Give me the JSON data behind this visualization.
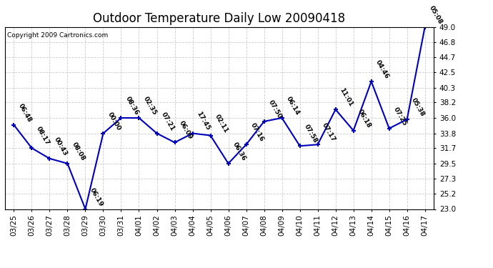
{
  "title": "Outdoor Temperature Daily Low 20090418",
  "copyright": "Copyright 2009 Cartronics.com",
  "x_labels": [
    "03/25",
    "03/26",
    "03/27",
    "03/28",
    "03/29",
    "03/30",
    "03/31",
    "04/01",
    "04/02",
    "04/03",
    "04/04",
    "04/05",
    "04/06",
    "04/07",
    "04/08",
    "04/09",
    "04/10",
    "04/11",
    "04/12",
    "04/13",
    "04/14",
    "04/15",
    "04/16",
    "04/17"
  ],
  "y_values": [
    35.0,
    31.7,
    30.2,
    29.5,
    23.0,
    33.8,
    36.0,
    36.0,
    33.8,
    32.5,
    33.8,
    33.5,
    29.5,
    32.2,
    35.5,
    36.0,
    32.0,
    32.2,
    37.2,
    34.2,
    41.2,
    34.5,
    35.8,
    49.0
  ],
  "annotations": [
    "06:48",
    "08:17",
    "00:43",
    "08:08",
    "06:19",
    "00:00",
    "08:36",
    "02:35",
    "07:21",
    "06:09",
    "17:45",
    "02:11",
    "06:36",
    "07:16",
    "07:50",
    "06:14",
    "07:58",
    "07:17",
    "11:01",
    "06:18",
    "04:46",
    "07:25",
    "05:38",
    "05:08"
  ],
  "ylim": [
    23.0,
    49.0
  ],
  "yticks": [
    23.0,
    25.2,
    27.3,
    29.5,
    31.7,
    33.8,
    36.0,
    38.2,
    40.3,
    42.5,
    44.7,
    46.8,
    49.0
  ],
  "line_color": "#0000bb",
  "bg_color": "#ffffff",
  "grid_color": "#cccccc",
  "title_fontsize": 12,
  "label_fontsize": 7.5,
  "annotation_fontsize": 6.5
}
